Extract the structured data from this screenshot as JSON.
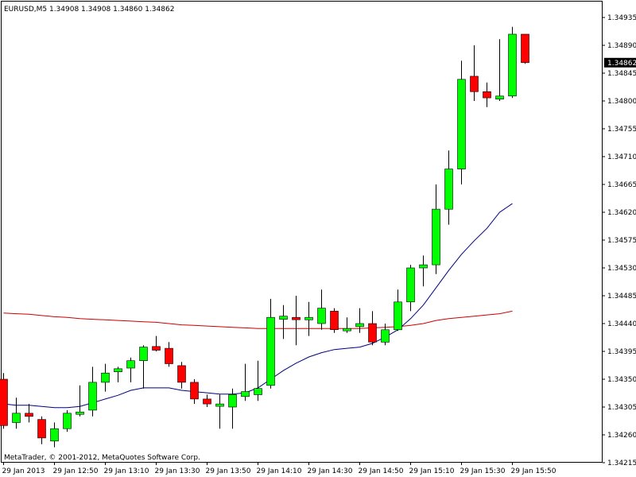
{
  "header": {
    "symbol_info": "EURUSD,M5  1.34908 1.34908 1.34860 1.34862"
  },
  "footer": {
    "copyright": "MetaTrader, © 2001-2012, MetaQuotes Software Corp."
  },
  "colors": {
    "bull_body": "#00ff00",
    "bear_body": "#ff0000",
    "wick": "#000000",
    "ma_fast": "#000080",
    "ma_slow": "#cc0000",
    "price_tag_bg": "#000000",
    "price_tag_text": "#ffffff"
  },
  "current_price_label": "1.34862",
  "chart_data": {
    "type": "candlestick",
    "symbol": "EURUSD",
    "timeframe": "M5",
    "ylim": [
      1.34215,
      1.34955
    ],
    "y_ticks": [
      "1.34935",
      "1.34890",
      "1.34845",
      "1.34800",
      "1.34755",
      "1.34710",
      "1.34665",
      "1.34620",
      "1.34575",
      "1.34530",
      "1.34485",
      "1.34440",
      "1.34395",
      "1.34350",
      "1.34305",
      "1.34260",
      "1.34215"
    ],
    "x_ticks": [
      {
        "label": "29 Jan 2013",
        "bar": 0
      },
      {
        "label": "29 Jan 12:50",
        "bar": 4
      },
      {
        "label": "29 Jan 13:10",
        "bar": 8
      },
      {
        "label": "29 Jan 13:30",
        "bar": 12
      },
      {
        "label": "29 Jan 13:50",
        "bar": 16
      },
      {
        "label": "29 Jan 14:10",
        "bar": 20
      },
      {
        "label": "29 Jan 14:30",
        "bar": 24
      },
      {
        "label": "29 Jan 14:50",
        "bar": 28
      },
      {
        "label": "29 Jan 15:10",
        "bar": 32
      },
      {
        "label": "29 Jan 15:30",
        "bar": 36
      },
      {
        "label": "29 Jan 15:50",
        "bar": 40
      }
    ],
    "candles": [
      {
        "o": 1.3435,
        "h": 1.3436,
        "l": 1.3427,
        "c": 1.34275
      },
      {
        "o": 1.3428,
        "h": 1.3432,
        "l": 1.3427,
        "c": 1.34295
      },
      {
        "o": 1.34295,
        "h": 1.3431,
        "l": 1.3428,
        "c": 1.3429
      },
      {
        "o": 1.34285,
        "h": 1.3429,
        "l": 1.34245,
        "c": 1.34255
      },
      {
        "o": 1.3425,
        "h": 1.3428,
        "l": 1.3424,
        "c": 1.3427
      },
      {
        "o": 1.3427,
        "h": 1.343,
        "l": 1.34265,
        "c": 1.34295
      },
      {
        "o": 1.34295,
        "h": 1.3434,
        "l": 1.3429,
        "c": 1.34297
      },
      {
        "o": 1.343,
        "h": 1.3437,
        "l": 1.3429,
        "c": 1.34345
      },
      {
        "o": 1.34345,
        "h": 1.34375,
        "l": 1.3433,
        "c": 1.3436
      },
      {
        "o": 1.34362,
        "h": 1.3437,
        "l": 1.34345,
        "c": 1.34367
      },
      {
        "o": 1.34368,
        "h": 1.34385,
        "l": 1.34345,
        "c": 1.3438
      },
      {
        "o": 1.3438,
        "h": 1.34405,
        "l": 1.34335,
        "c": 1.34402
      },
      {
        "o": 1.34403,
        "h": 1.3442,
        "l": 1.34395,
        "c": 1.34397
      },
      {
        "o": 1.344,
        "h": 1.3441,
        "l": 1.3437,
        "c": 1.34375
      },
      {
        "o": 1.34372,
        "h": 1.34378,
        "l": 1.34335,
        "c": 1.34345
      },
      {
        "o": 1.34345,
        "h": 1.3435,
        "l": 1.3431,
        "c": 1.34318
      },
      {
        "o": 1.34318,
        "h": 1.34325,
        "l": 1.34305,
        "c": 1.3431
      },
      {
        "o": 1.34307,
        "h": 1.34325,
        "l": 1.3427,
        "c": 1.3431
      },
      {
        "o": 1.34305,
        "h": 1.34335,
        "l": 1.3427,
        "c": 1.34325
      },
      {
        "o": 1.34322,
        "h": 1.34375,
        "l": 1.34315,
        "c": 1.3433
      },
      {
        "o": 1.34325,
        "h": 1.3438,
        "l": 1.34315,
        "c": 1.34335
      },
      {
        "o": 1.3434,
        "h": 1.3448,
        "l": 1.34335,
        "c": 1.3445
      },
      {
        "o": 1.34447,
        "h": 1.3447,
        "l": 1.34415,
        "c": 1.34452
      },
      {
        "o": 1.3445,
        "h": 1.34485,
        "l": 1.34405,
        "c": 1.34448
      },
      {
        "o": 1.34446,
        "h": 1.34475,
        "l": 1.3442,
        "c": 1.3445
      },
      {
        "o": 1.3444,
        "h": 1.34495,
        "l": 1.3443,
        "c": 1.34465
      },
      {
        "o": 1.3446,
        "h": 1.34465,
        "l": 1.34425,
        "c": 1.3443
      },
      {
        "o": 1.3443,
        "h": 1.3445,
        "l": 1.34425,
        "c": 1.34432
      },
      {
        "o": 1.34435,
        "h": 1.34465,
        "l": 1.34425,
        "c": 1.3444
      },
      {
        "o": 1.3444,
        "h": 1.3446,
        "l": 1.34405,
        "c": 1.3441
      },
      {
        "o": 1.3441,
        "h": 1.3444,
        "l": 1.34405,
        "c": 1.3443
      },
      {
        "o": 1.3443,
        "h": 1.34495,
        "l": 1.34428,
        "c": 1.34475
      },
      {
        "o": 1.34475,
        "h": 1.34535,
        "l": 1.3446,
        "c": 1.3453
      },
      {
        "o": 1.3453,
        "h": 1.3455,
        "l": 1.345,
        "c": 1.34535
      },
      {
        "o": 1.34535,
        "h": 1.34665,
        "l": 1.3452,
        "c": 1.34625
      },
      {
        "o": 1.34625,
        "h": 1.3472,
        "l": 1.346,
        "c": 1.3469
      },
      {
        "o": 1.3469,
        "h": 1.34865,
        "l": 1.34665,
        "c": 1.34835
      },
      {
        "o": 1.3484,
        "h": 1.3489,
        "l": 1.348,
        "c": 1.34815
      },
      {
        "o": 1.34815,
        "h": 1.3483,
        "l": 1.3479,
        "c": 1.34805
      },
      {
        "o": 1.34803,
        "h": 1.349,
        "l": 1.348,
        "c": 1.34808
      },
      {
        "o": 1.34808,
        "h": 1.3492,
        "l": 1.34805,
        "c": 1.34908
      },
      {
        "o": 1.34908,
        "h": 1.34908,
        "l": 1.3486,
        "c": 1.34862
      }
    ],
    "ma_fast": [
      1.3431,
      1.34308,
      1.34308,
      1.34306,
      1.34304,
      1.34304,
      1.34306,
      1.34312,
      1.34318,
      1.34324,
      1.34332,
      1.34336,
      1.34336,
      1.34336,
      1.34332,
      1.3433,
      1.34328,
      1.34326,
      1.34326,
      1.34328,
      1.34336,
      1.3435,
      1.34364,
      1.34376,
      1.34386,
      1.34393,
      1.34398,
      1.344,
      1.34402,
      1.34408,
      1.34418,
      1.3443,
      1.34448,
      1.3447,
      1.34498,
      1.34526,
      1.34552,
      1.34574,
      1.34594,
      1.3462,
      1.34634
    ],
    "ma_slow": [
      1.34457,
      1.34456,
      1.34455,
      1.34453,
      1.34451,
      1.3445,
      1.34448,
      1.34447,
      1.34446,
      1.34445,
      1.34444,
      1.34443,
      1.34442,
      1.3444,
      1.34438,
      1.34437,
      1.34436,
      1.34435,
      1.34434,
      1.34433,
      1.34432,
      1.34432,
      1.34432,
      1.34432,
      1.34432,
      1.34432,
      1.34432,
      1.34432,
      1.34432,
      1.34433,
      1.34434,
      1.34435,
      1.34437,
      1.3444,
      1.34445,
      1.34448,
      1.3445,
      1.34452,
      1.34454,
      1.34456,
      1.3446
    ]
  }
}
